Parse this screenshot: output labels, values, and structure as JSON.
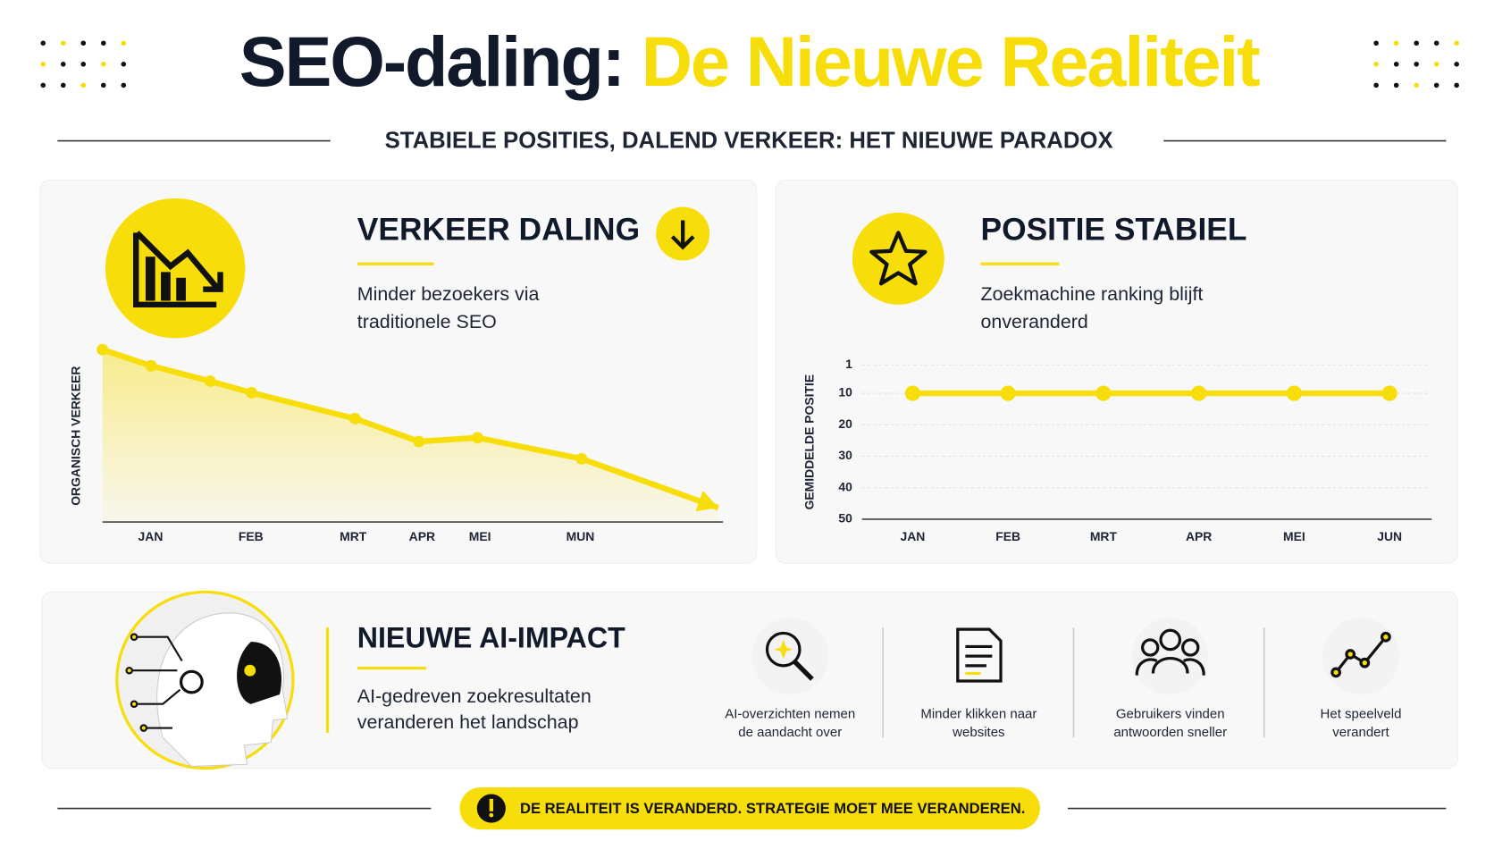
{
  "header": {
    "title": "SEO-daling:",
    "title_highlight": "De Nieuwe Realiteit",
    "subtitle": "STABIELE POSITIES, DALEND VERKEER: HET NIEUWE PARADOX"
  },
  "panels": [
    {
      "title": "VERKEER DALING",
      "text": [
        "Minder bezoekers via",
        "traditionele SEO"
      ]
    },
    {
      "title": "POSITIE STABIEL",
      "text": [
        "Zoekmachine ranking blijft",
        "onveranderd"
      ]
    }
  ],
  "chart_data": [
    {
      "type": "line",
      "ylabel": "ORGANISCH VERKEER",
      "color": "#f7dd0a",
      "area": true,
      "end_arrow": true,
      "x": [
        0,
        7.9,
        17.5,
        24.2,
        41.0,
        51.4,
        60.9,
        77.8,
        100
      ],
      "values": [
        100,
        90.6,
        81.7,
        75,
        60,
        46.7,
        48.9,
        36.7,
        8.3
      ],
      "xlim": [
        0,
        100
      ],
      "ylim": [
        0,
        100
      ],
      "xticks": [
        {
          "value": 7.8,
          "label": "JAN"
        },
        {
          "value": 24.1,
          "label": "FEB"
        },
        {
          "value": 40.7,
          "label": "MRT"
        },
        {
          "value": 51.9,
          "label": "APR"
        },
        {
          "value": 61.3,
          "label": "MEI"
        },
        {
          "value": 77.6,
          "label": "MUN"
        }
      ]
    },
    {
      "type": "line",
      "ylabel": "GEMIDDELDE POSITIE",
      "color": "#f7dd0a",
      "grid": true,
      "categories": [
        "JAN",
        "FEB",
        "MRT",
        "APR",
        "MEI",
        "JUN"
      ],
      "values": [
        10,
        10,
        10,
        10,
        10,
        10
      ],
      "ylim": [
        50,
        1
      ],
      "yticks": [
        1,
        10,
        20,
        30,
        40,
        50
      ]
    }
  ],
  "ai_impact": {
    "title": "NIEUWE AI-IMPACT",
    "text": [
      "AI-gedreven zoekresultaten",
      "veranderen het landschap"
    ],
    "items": [
      [
        "AI-overzichten nemen",
        "de aandacht over"
      ],
      [
        "Minder klikken naar",
        "websites"
      ],
      [
        "Gebruikers vinden",
        "antwoorden sneller"
      ],
      [
        "Het speelveld",
        "verandert"
      ]
    ]
  },
  "footer": {
    "banner": "DE REALITEIT IS VERANDERD. STRATEGIE MOET MEE VERANDEREN."
  }
}
